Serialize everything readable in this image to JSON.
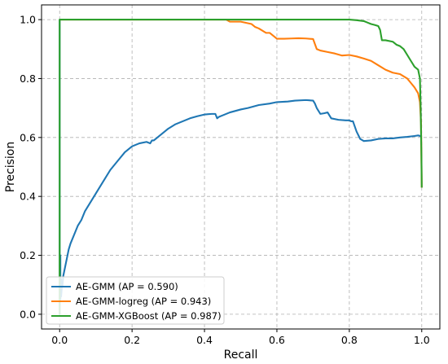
{
  "chart_data": {
    "type": "line",
    "xlabel": "Recall",
    "ylabel": "Precision",
    "xlim": [
      -0.05,
      1.05
    ],
    "ylim": [
      -0.05,
      1.05
    ],
    "x_ticks": [
      "0.0",
      "0.2",
      "0.4",
      "0.6",
      "0.8",
      "1.0"
    ],
    "y_ticks": [
      "0.0",
      "0.2",
      "0.4",
      "0.6",
      "0.8",
      "1.0"
    ],
    "grid": true,
    "legend_position": "lower-left",
    "series": [
      {
        "name": "AE-GMM (AP = 0.590)",
        "color": "#1f77b4",
        "x": [
          0,
          0,
          0.002,
          0.002,
          0.004,
          0.004,
          0.006,
          0.008,
          0.01,
          0.015,
          0.02,
          0.025,
          0.03,
          0.04,
          0.05,
          0.06,
          0.07,
          0.08,
          0.1,
          0.12,
          0.14,
          0.16,
          0.18,
          0.2,
          0.22,
          0.24,
          0.25,
          0.255,
          0.26,
          0.28,
          0.3,
          0.32,
          0.34,
          0.36,
          0.38,
          0.4,
          0.42,
          0.43,
          0.435,
          0.44,
          0.45,
          0.47,
          0.5,
          0.52,
          0.55,
          0.58,
          0.6,
          0.63,
          0.65,
          0.68,
          0.69,
          0.7,
          0.705,
          0.71,
          0.72,
          0.73,
          0.74,
          0.75,
          0.77,
          0.79,
          0.8,
          0.805,
          0.81,
          0.82,
          0.83,
          0.84,
          0.86,
          0.88,
          0.9,
          0.92,
          0.94,
          0.96,
          0.98,
          0.99,
          0.995,
          1.0
        ],
        "y": [
          1.0,
          0.0,
          0.2,
          0.05,
          0.12,
          0.06,
          0.09,
          0.1,
          0.13,
          0.16,
          0.19,
          0.22,
          0.24,
          0.27,
          0.3,
          0.32,
          0.35,
          0.37,
          0.41,
          0.45,
          0.49,
          0.52,
          0.55,
          0.57,
          0.58,
          0.585,
          0.58,
          0.59,
          0.59,
          0.61,
          0.63,
          0.645,
          0.655,
          0.665,
          0.672,
          0.678,
          0.68,
          0.68,
          0.665,
          0.67,
          0.675,
          0.685,
          0.695,
          0.7,
          0.71,
          0.715,
          0.72,
          0.722,
          0.725,
          0.727,
          0.726,
          0.725,
          0.715,
          0.7,
          0.68,
          0.682,
          0.685,
          0.665,
          0.66,
          0.658,
          0.658,
          0.655,
          0.655,
          0.62,
          0.595,
          0.588,
          0.59,
          0.595,
          0.597,
          0.597,
          0.6,
          0.602,
          0.605,
          0.607,
          0.605,
          0.608
        ]
      },
      {
        "name": "AE-GMM-logreg (AP = 0.943)",
        "color": "#ff7f0e",
        "x": [
          0,
          0.46,
          0.47,
          0.5,
          0.53,
          0.54,
          0.55,
          0.57,
          0.58,
          0.6,
          0.62,
          0.64,
          0.66,
          0.68,
          0.7,
          0.71,
          0.72,
          0.74,
          0.76,
          0.78,
          0.8,
          0.82,
          0.84,
          0.86,
          0.88,
          0.9,
          0.92,
          0.94,
          0.96,
          0.97,
          0.98,
          0.99,
          0.995,
          0.998,
          1.0
        ],
        "y": [
          1.0,
          1.0,
          0.993,
          0.993,
          0.985,
          0.975,
          0.97,
          0.955,
          0.955,
          0.935,
          0.935,
          0.936,
          0.937,
          0.936,
          0.934,
          0.9,
          0.895,
          0.89,
          0.885,
          0.878,
          0.88,
          0.875,
          0.868,
          0.86,
          0.845,
          0.83,
          0.82,
          0.815,
          0.8,
          0.785,
          0.77,
          0.75,
          0.72,
          0.65,
          0.43
        ]
      },
      {
        "name": "AE-GMM-XGBoost (AP = 0.987)",
        "color": "#2ca02c",
        "x": [
          0,
          0.0,
          0.8,
          0.82,
          0.84,
          0.85,
          0.86,
          0.87,
          0.88,
          0.885,
          0.89,
          0.9,
          0.92,
          0.93,
          0.94,
          0.95,
          0.96,
          0.97,
          0.98,
          0.99,
          0.995,
          0.997,
          0.999,
          1.0
        ],
        "y": [
          0.0,
          1.0,
          1.0,
          0.998,
          0.995,
          0.99,
          0.985,
          0.982,
          0.978,
          0.965,
          0.93,
          0.93,
          0.925,
          0.915,
          0.91,
          0.9,
          0.88,
          0.86,
          0.84,
          0.83,
          0.8,
          0.7,
          0.55,
          0.43
        ]
      }
    ]
  }
}
